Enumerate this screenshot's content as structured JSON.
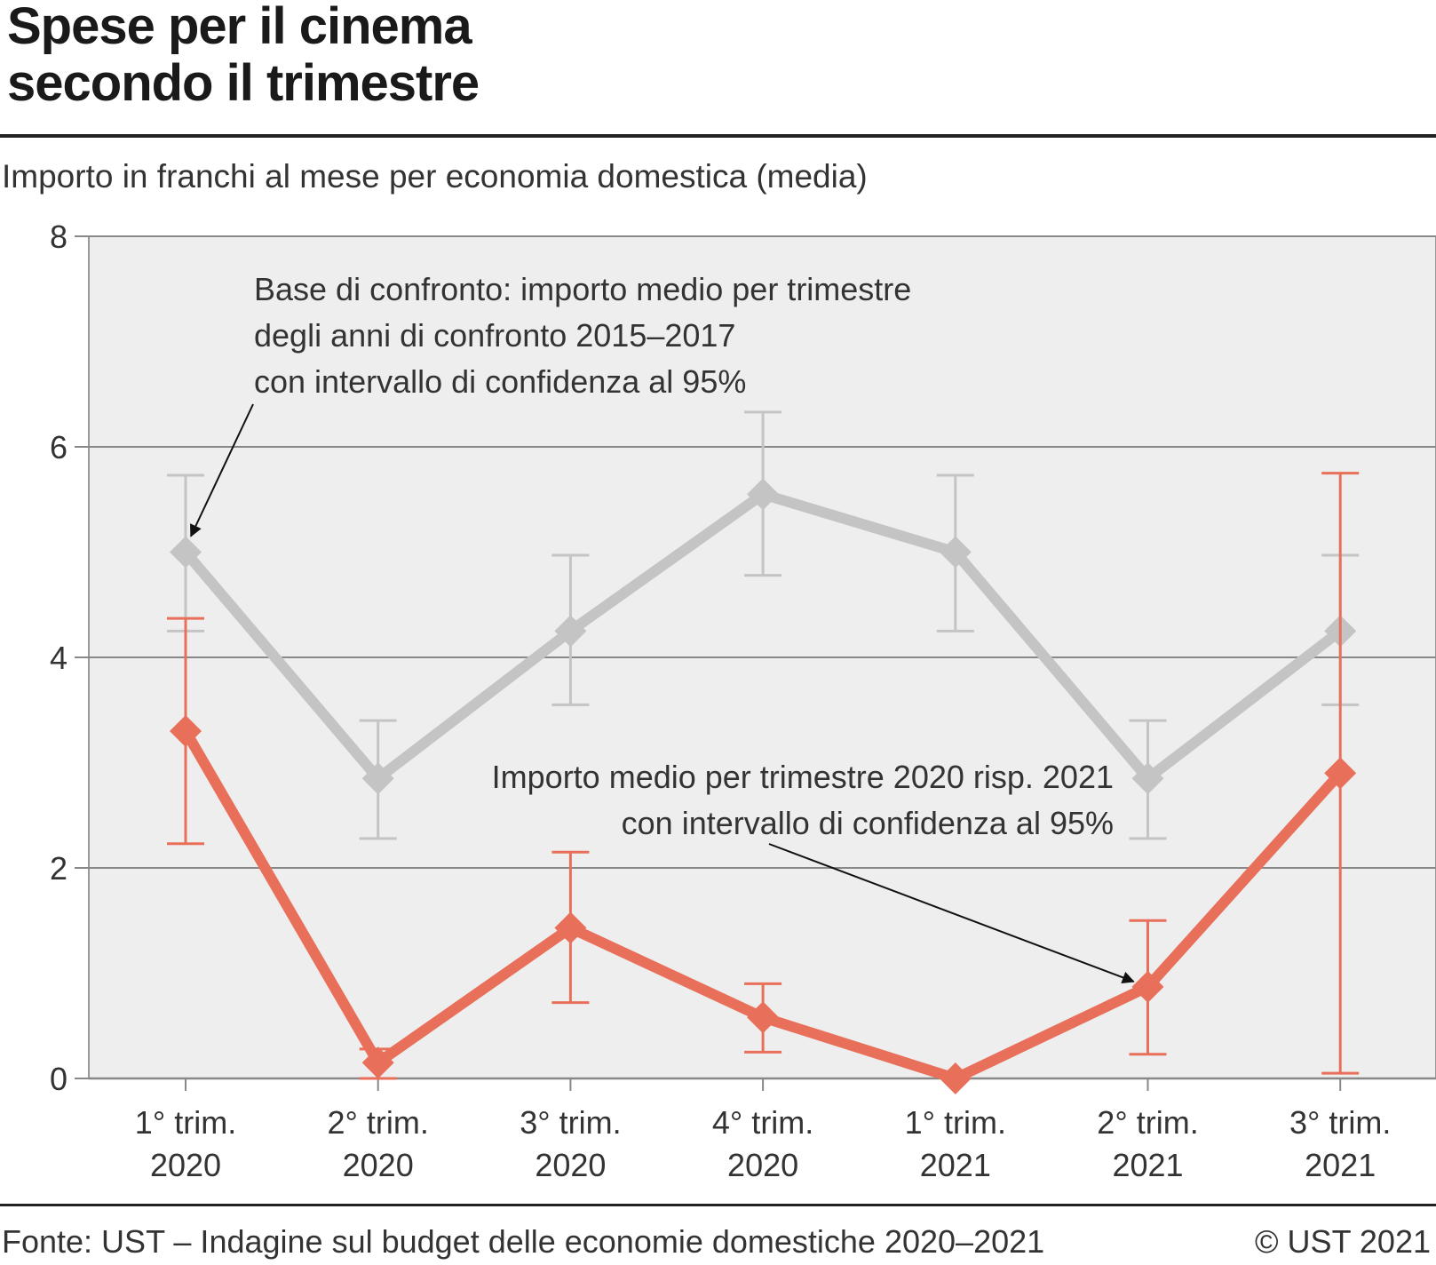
{
  "title_line1": "Spese per il cinema",
  "title_line2": "secondo il trimestre",
  "subtitle": "Importo in franchi al mese per economia domestica (media)",
  "source": "Fonte: UST – Indagine sul budget delle economie domestiche 2020–2021",
  "copyright": "© UST 2021",
  "colors": {
    "baseline": "#c4c4c4",
    "current": "#e8705a",
    "plot_bg": "#efeeee",
    "grid": "#888888"
  },
  "chart_data": {
    "type": "line",
    "ylim": [
      0,
      8
    ],
    "yticks": [
      0,
      2,
      4,
      6,
      8
    ],
    "categories": [
      [
        "1° trim.",
        "2020"
      ],
      [
        "2° trim.",
        "2020"
      ],
      [
        "3° trim.",
        "2020"
      ],
      [
        "4° trim.",
        "2020"
      ],
      [
        "1° trim.",
        "2021"
      ],
      [
        "2° trim.",
        "2021"
      ],
      [
        "3° trim.",
        "2021"
      ]
    ],
    "series": [
      {
        "key": "baseline",
        "values": [
          5.0,
          2.85,
          4.25,
          5.55,
          5.0,
          2.85,
          4.25
        ],
        "ci_low": [
          4.25,
          2.28,
          3.55,
          4.78,
          4.25,
          2.28,
          3.55
        ],
        "ci_high": [
          5.73,
          3.4,
          4.97,
          6.33,
          5.73,
          3.4,
          4.97
        ]
      },
      {
        "key": "current",
        "values": [
          3.3,
          0.15,
          1.43,
          0.58,
          0.0,
          0.87,
          2.9
        ],
        "ci_low": [
          2.23,
          0.0,
          0.72,
          0.25,
          null,
          0.23,
          0.05
        ],
        "ci_high": [
          4.37,
          0.28,
          2.15,
          0.9,
          null,
          1.5,
          5.75
        ]
      }
    ],
    "annotations": [
      {
        "lines": [
          "Base di confronto: importo medio per trimestre",
          "degli anni di confronto 2015–2017",
          "con intervallo di confidenza al 95%"
        ],
        "points_to": {
          "series": "baseline",
          "index": 0
        }
      },
      {
        "lines": [
          "Importo medio per trimestre 2020 risp. 2021",
          "con intervallo di confidenza al 95%"
        ],
        "points_to": {
          "series": "current",
          "index": 5
        }
      }
    ]
  }
}
